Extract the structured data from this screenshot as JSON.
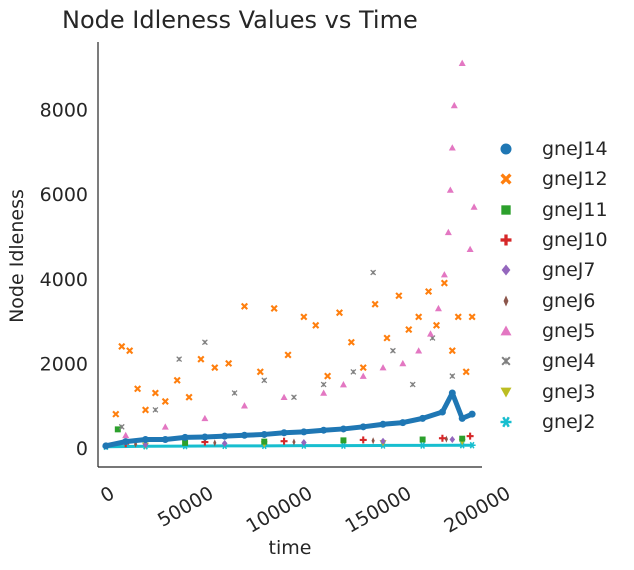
{
  "chart_data": {
    "type": "scatter",
    "title": "Node Idleness Values vs Time",
    "xlabel": "time",
    "ylabel": "Node Idleness",
    "xlim": [
      -4000,
      190000
    ],
    "ylim": [
      -450,
      9600
    ],
    "x_ticks": [
      0,
      50000,
      100000,
      150000,
      200000
    ],
    "x_tick_labels": [
      "0",
      "50000",
      "100000",
      "150000",
      "200000"
    ],
    "y_ticks": [
      0,
      2000,
      4000,
      6000,
      8000
    ],
    "y_tick_labels": [
      "0",
      "2000",
      "4000",
      "6000",
      "8000"
    ],
    "legend_position": "right",
    "grid": false,
    "series": [
      {
        "name": "gneJ14",
        "marker": "circle",
        "color": "#1f77b4",
        "style": "dense-line",
        "x": [
          0,
          10000,
          20000,
          30000,
          40000,
          50000,
          60000,
          70000,
          80000,
          90000,
          100000,
          110000,
          120000,
          130000,
          140000,
          150000,
          160000,
          170000,
          175000,
          180000,
          185000
        ],
        "y": [
          50,
          150,
          200,
          200,
          250,
          260,
          280,
          300,
          320,
          360,
          380,
          420,
          450,
          500,
          560,
          600,
          700,
          850,
          1300,
          700,
          800
        ]
      },
      {
        "name": "gneJ12",
        "marker": "x",
        "color": "#ff7f0e",
        "x": [
          5000,
          8000,
          12000,
          16000,
          20000,
          25000,
          30000,
          36000,
          42000,
          48000,
          55000,
          62000,
          70000,
          78000,
          85000,
          92000,
          100000,
          106000,
          112000,
          118000,
          124000,
          130000,
          136000,
          142000,
          148000,
          153000,
          158000,
          163000,
          167000,
          171000,
          175000,
          178000,
          182000,
          185000
        ],
        "y": [
          800,
          2400,
          2300,
          1400,
          900,
          1300,
          1100,
          1600,
          1200,
          2100,
          1900,
          2000,
          3350,
          1800,
          3300,
          2200,
          3100,
          2900,
          1700,
          3200,
          2500,
          1900,
          3400,
          2600,
          3600,
          2800,
          3100,
          3700,
          2900,
          3900,
          2300,
          3100,
          1800,
          3100
        ]
      },
      {
        "name": "gneJ11",
        "marker": "square",
        "color": "#2ca02c",
        "x": [
          6000,
          40000,
          80000,
          120000,
          160000,
          180000
        ],
        "y": [
          440,
          120,
          150,
          180,
          200,
          220
        ]
      },
      {
        "name": "gneJ10",
        "marker": "plus",
        "color": "#d62728",
        "x": [
          10000,
          50000,
          90000,
          130000,
          170000,
          184000
        ],
        "y": [
          100,
          140,
          160,
          190,
          230,
          280
        ]
      },
      {
        "name": "gneJ7",
        "marker": "diamond",
        "color": "#9467bd",
        "x": [
          20000,
          60000,
          100000,
          140000,
          175000
        ],
        "y": [
          80,
          110,
          130,
          160,
          200
        ]
      },
      {
        "name": "gneJ6",
        "marker": "diamond-thin",
        "color": "#8c564b",
        "x": [
          15000,
          55000,
          95000,
          135000,
          172000
        ],
        "y": [
          90,
          120,
          140,
          170,
          210
        ]
      },
      {
        "name": "gneJ5",
        "marker": "triangle",
        "color": "#e377c2",
        "x": [
          10000,
          30000,
          50000,
          70000,
          90000,
          110000,
          120000,
          130000,
          140000,
          150000,
          158000,
          164000,
          168000,
          171000,
          173000,
          174000,
          175000,
          176000,
          180000,
          184000,
          186000
        ],
        "y": [
          300,
          500,
          700,
          1000,
          1200,
          1300,
          1500,
          1700,
          1900,
          2000,
          2300,
          2700,
          3300,
          4100,
          5100,
          6100,
          7100,
          8100,
          9100,
          4700,
          5700
        ]
      },
      {
        "name": "gneJ4",
        "marker": "x-thin",
        "color": "#7f7f7f",
        "x": [
          8000,
          25000,
          37000,
          50000,
          65000,
          80000,
          95000,
          110000,
          125000,
          135000,
          145000,
          155000,
          165000,
          175000
        ],
        "y": [
          500,
          900,
          2100,
          2500,
          1300,
          1600,
          1200,
          1500,
          1800,
          4150,
          2300,
          1500,
          2600,
          1700
        ]
      },
      {
        "name": "gneJ3",
        "marker": "triangle-down",
        "color": "#bcbd22",
        "x": [
          20000,
          80000,
          140000,
          180000
        ],
        "y": [
          60,
          90,
          120,
          150
        ]
      },
      {
        "name": "gneJ2",
        "marker": "star",
        "color": "#17becf",
        "style": "dense-band",
        "x": [
          0,
          20000,
          40000,
          60000,
          80000,
          100000,
          120000,
          140000,
          160000,
          180000,
          185000
        ],
        "y": [
          30,
          40,
          45,
          50,
          50,
          55,
          55,
          60,
          60,
          65,
          65
        ]
      }
    ]
  }
}
